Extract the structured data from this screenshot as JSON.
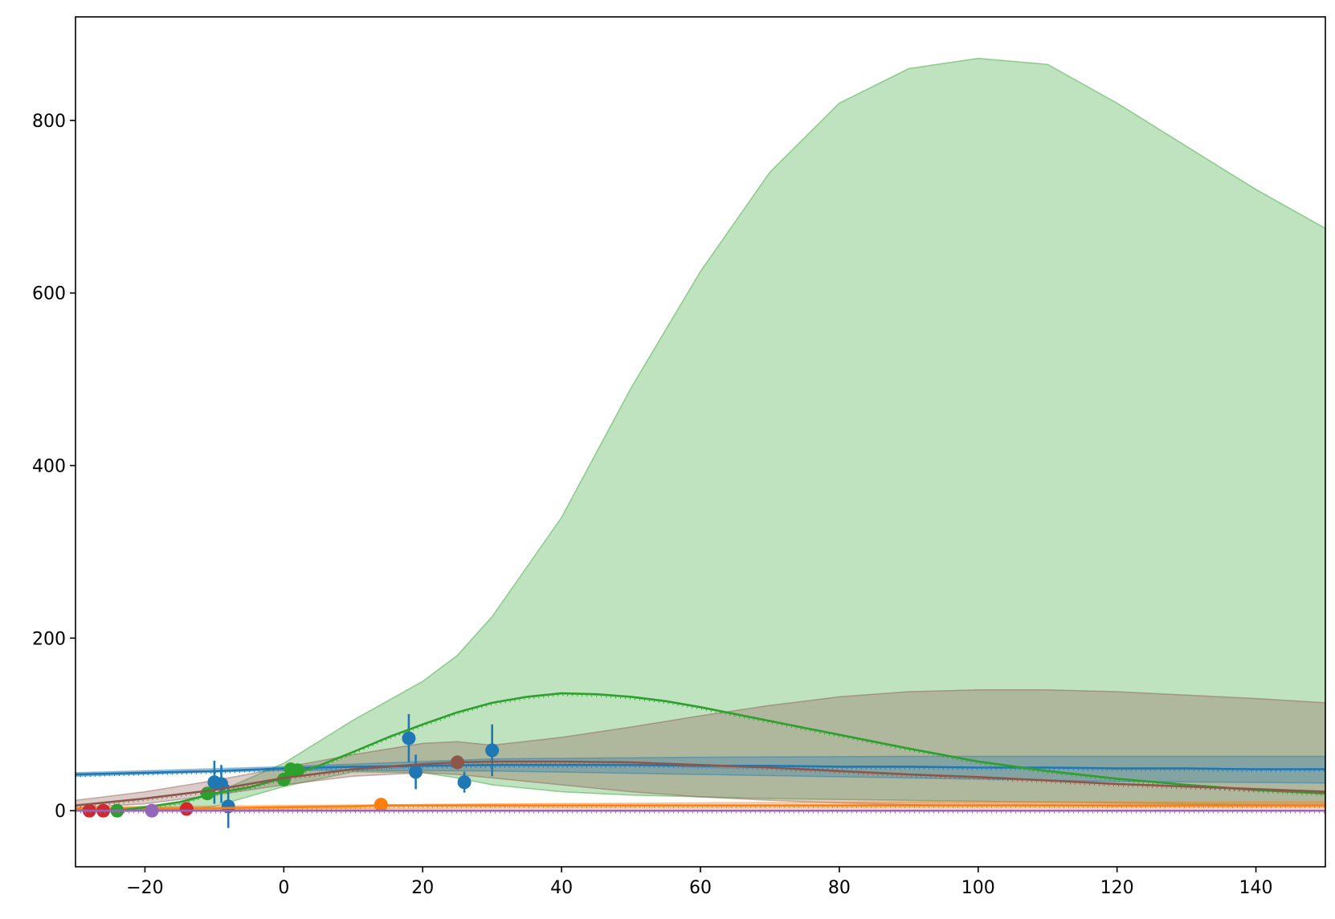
{
  "chart_data": {
    "type": "line",
    "title": "",
    "xlabel": "",
    "ylabel": "",
    "xlim": [
      -30,
      150
    ],
    "ylim": [
      -65,
      920
    ],
    "grid": false,
    "legend": "none",
    "x_ticks": [
      -20,
      0,
      20,
      40,
      60,
      80,
      100,
      120,
      140
    ],
    "x_tick_labels": [
      "−20",
      "0",
      "20",
      "40",
      "60",
      "80",
      "100",
      "120",
      "140"
    ],
    "y_ticks": [
      0,
      200,
      400,
      600,
      800
    ],
    "y_tick_labels": [
      "0",
      "200",
      "400",
      "600",
      "800"
    ],
    "bands": [
      {
        "color": "#2ca02c",
        "x": [
          -24,
          -15,
          -10,
          0,
          10,
          20,
          25,
          30,
          40,
          50,
          60,
          70,
          80,
          90,
          100,
          110,
          120,
          130,
          140,
          150
        ],
        "lower": [
          0,
          1,
          5,
          28,
          45,
          44,
          38,
          30,
          22,
          18,
          16,
          14,
          13,
          12,
          11,
          10,
          9,
          8,
          7,
          6
        ],
        "upper": [
          3,
          8,
          20,
          55,
          105,
          150,
          180,
          225,
          340,
          490,
          625,
          740,
          820,
          860,
          872,
          865,
          820,
          770,
          720,
          675
        ]
      },
      {
        "color": "#8c564b",
        "x": [
          -30,
          -20,
          -10,
          0,
          10,
          20,
          25,
          30,
          40,
          50,
          60,
          70,
          80,
          90,
          100,
          110,
          120,
          130,
          140,
          150
        ],
        "lower": [
          3,
          8,
          18,
          30,
          40,
          44,
          42,
          38,
          30,
          22,
          16,
          12,
          9,
          7,
          6,
          6,
          5,
          5,
          5,
          5
        ],
        "upper": [
          12,
          22,
          35,
          50,
          65,
          78,
          80,
          76,
          85,
          97,
          110,
          122,
          132,
          138,
          140,
          140,
          138,
          134,
          130,
          125
        ]
      },
      {
        "color": "#1f77b4",
        "x": [
          -30,
          0,
          30,
          60,
          90,
          120,
          150
        ],
        "lower": [
          40,
          47,
          46,
          42,
          38,
          34,
          32
        ],
        "upper": [
          44,
          51,
          60,
          62,
          63,
          63,
          63
        ]
      },
      {
        "color": "#ff7f0e",
        "x": [
          -30,
          0,
          30,
          60,
          90,
          120,
          150
        ],
        "lower": [
          0,
          2,
          3,
          3,
          3,
          3,
          3
        ],
        "upper": [
          4,
          6,
          8,
          9,
          10,
          10,
          10
        ]
      }
    ],
    "series": [
      {
        "color": "#1f77b4",
        "x": [
          -30,
          -20,
          -10,
          0,
          10,
          20,
          30,
          40,
          50,
          60,
          70,
          80,
          90,
          100,
          110,
          120,
          130,
          140,
          150
        ],
        "y": [
          42,
          44,
          46,
          49,
          51,
          52,
          53,
          53,
          53,
          52,
          52,
          51,
          51,
          50,
          50,
          49,
          49,
          48,
          48
        ],
        "points": [
          {
            "x": -10,
            "y": 33,
            "err": 25
          },
          {
            "x": -9,
            "y": 31,
            "err": 22
          },
          {
            "x": -8,
            "y": 5,
            "err": 25
          },
          {
            "x": 18,
            "y": 84,
            "err": 28
          },
          {
            "x": 19,
            "y": 45,
            "err": 20
          },
          {
            "x": 26,
            "y": 33,
            "err": 12
          },
          {
            "x": 30,
            "y": 70,
            "err": 30
          }
        ]
      },
      {
        "color": "#ff7f0e",
        "x": [
          -30,
          -10,
          0,
          10,
          14,
          30,
          60,
          90,
          120,
          150
        ],
        "y": [
          2,
          3,
          4,
          5,
          6,
          6,
          6,
          6,
          6,
          6
        ],
        "points": [
          {
            "x": 14,
            "y": 7,
            "err": 0
          }
        ]
      },
      {
        "color": "#2ca02c",
        "x": [
          -24,
          -20,
          -15,
          -10,
          -5,
          0,
          5,
          10,
          15,
          20,
          25,
          30,
          35,
          40,
          45,
          50,
          55,
          60,
          70,
          80,
          90,
          100,
          110,
          120,
          130,
          140,
          150
        ],
        "y": [
          0,
          4,
          10,
          20,
          27,
          38,
          52,
          68,
          85,
          100,
          114,
          125,
          132,
          136,
          135,
          132,
          127,
          120,
          104,
          88,
          72,
          57,
          46,
          37,
          30,
          24,
          20
        ],
        "points": [
          {
            "x": -24,
            "y": 0,
            "err": 0
          },
          {
            "x": -11,
            "y": 20,
            "err": 0
          },
          {
            "x": 0,
            "y": 36,
            "err": 0
          },
          {
            "x": 1,
            "y": 48,
            "err": 0
          },
          {
            "x": 2,
            "y": 47,
            "err": 0
          }
        ]
      },
      {
        "color": "#d62728",
        "x": [
          -30,
          -20,
          -10,
          0,
          30,
          60,
          90,
          120,
          150
        ],
        "y": [
          0,
          0,
          0,
          0,
          0,
          0,
          0,
          0,
          0
        ],
        "points": [
          {
            "x": -28,
            "y": 0,
            "err": 0
          },
          {
            "x": -26,
            "y": 0,
            "err": 0
          },
          {
            "x": -14,
            "y": 2,
            "err": 0
          }
        ]
      },
      {
        "color": "#9467bd",
        "x": [
          -30,
          0,
          30,
          60,
          90,
          120,
          150
        ],
        "y": [
          0,
          0,
          0,
          0,
          0,
          0,
          0
        ],
        "points": [
          {
            "x": -19,
            "y": 0,
            "err": 0
          }
        ]
      },
      {
        "color": "#8c564b",
        "x": [
          -30,
          -20,
          -10,
          0,
          10,
          20,
          25,
          30,
          40,
          50,
          60,
          70,
          80,
          90,
          100,
          110,
          120,
          130,
          140,
          150
        ],
        "y": [
          6,
          14,
          24,
          38,
          48,
          54,
          56,
          57,
          57,
          56,
          53,
          50,
          46,
          42,
          39,
          35,
          31,
          28,
          25,
          22
        ],
        "points": [
          {
            "x": 25,
            "y": 56,
            "err": 8
          }
        ]
      }
    ]
  }
}
